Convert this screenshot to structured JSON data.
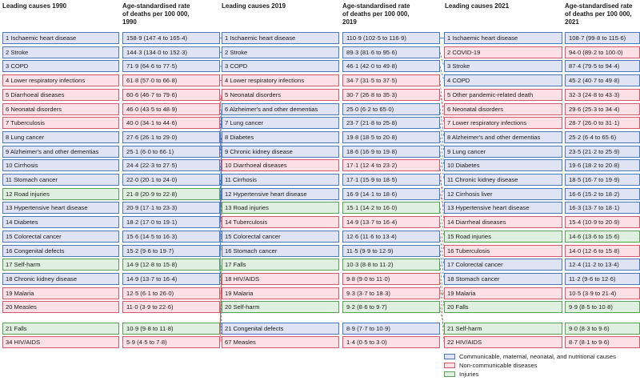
{
  "colors": {
    "communicable": "#4a78b8",
    "noncommunicable": "#d2596b",
    "injuries": "#5a9e5a",
    "communicable_fill": "#e0e3f4",
    "noncommunicable_fill": "#fbe0e6",
    "injuries_fill": "#e0f0e0"
  },
  "headers": {
    "c1990_title": "Leading causes 1990",
    "r1990_l1": "Age-standardised rate",
    "r1990_l2": "of deaths per 100 000,",
    "r1990_l3": "1990",
    "c2019_title": "Leading causes 2019",
    "r2019_l1": "Age-standardised rate",
    "r2019_l2": "of deaths per 100 000,",
    "r2019_l3": "2019",
    "c2021_title": "Leading causes 2021",
    "r2021_l1": "Age-standardised rate",
    "r2021_l2": "of deaths per 100 000,",
    "r2021_l3": "2021"
  },
  "y1990": [
    {
      "label": "1 Ischaemic heart disease",
      "rate": "158·9 (147·4 to 165·4)",
      "cat": "cmn"
    },
    {
      "label": "2 Stroke",
      "rate": "144·3 (134·0 to 152·3)",
      "cat": "cmn"
    },
    {
      "label": "3 COPD",
      "rate": "71·9 (64·6 to 77·5)",
      "cat": "cmn"
    },
    {
      "label": "4 Lower respiratory infections",
      "rate": "61·8 (57·0 to 66·8)",
      "cat": "ncd"
    },
    {
      "label": "5 Diarrhoeal diseases",
      "rate": "60·6 (46·7 to 79·6)",
      "cat": "ncd"
    },
    {
      "label": "6 Neonatal disorders",
      "rate": "46·0 (43·5 to 48·9)",
      "cat": "ncd"
    },
    {
      "label": "7 Tuberculosis",
      "rate": "40·0 (34·1 to 44·6)",
      "cat": "ncd"
    },
    {
      "label": "8 Lung cancer",
      "rate": "27·6 (26·1 to 29·0)",
      "cat": "cmn"
    },
    {
      "label": "9 Alzheimer's and other dementias",
      "rate": "25·1 (6·0 to 66·1)",
      "cat": "cmn"
    },
    {
      "label": "10 Cirrhosis",
      "rate": "24·4 (22·3 to 27·5)",
      "cat": "cmn"
    },
    {
      "label": "11 Stomach cancer",
      "rate": "22·0 (20·1 to 24·0)",
      "cat": "cmn"
    },
    {
      "label": "12 Road injuries",
      "rate": "21·8 (20·9 to 22·8)",
      "cat": "inj"
    },
    {
      "label": "13 Hypertensive heart disease",
      "rate": "20·9 (17·1 to 23·3)",
      "cat": "cmn"
    },
    {
      "label": "14 Diabetes",
      "rate": "18·2 (17·0 to 19·1)",
      "cat": "cmn"
    },
    {
      "label": "15 Colorectal cancer",
      "rate": "15·6 (14·5 to 16·3)",
      "cat": "cmn"
    },
    {
      "label": "16 Congenital defects",
      "rate": "15·2 (9·6 to 19·7)",
      "cat": "cmn"
    },
    {
      "label": "17 Self-harm",
      "rate": "14·9 (12·8 to 15·8)",
      "cat": "inj"
    },
    {
      "label": "18 Chronic kidney disease",
      "rate": "14·9 (13·7 to 16·4)",
      "cat": "cmn"
    },
    {
      "label": "19 Malaria",
      "rate": "12·5 (6·1 to 26·0)",
      "cat": "ncd"
    },
    {
      "label": "20 Measles",
      "rate": "11·0 (3·9 to 22·6)",
      "cat": "ncd"
    }
  ],
  "y1990_extra": [
    {
      "label": "21 Falls",
      "rate": "10·9 (9·8 to 11·8)",
      "cat": "inj"
    },
    {
      "label": "34 HIV/AIDS",
      "rate": "5·9 (4·5 to 7·8)",
      "cat": "ncd"
    }
  ],
  "y2019": [
    {
      "label": "1 Ischaemic heart disease",
      "rate": "110·9 (102·5 to 116·9)",
      "cat": "cmn"
    },
    {
      "label": "2 Stroke",
      "rate": "89·3 (81·6 to 95·6)",
      "cat": "cmn"
    },
    {
      "label": "3 COPD",
      "rate": "46·1 (42·0 to 49·8)",
      "cat": "cmn"
    },
    {
      "label": "4 Lower respiratory infections",
      "rate": "34·7 (31·5 to 37·5)",
      "cat": "ncd"
    },
    {
      "label": "5 Neonatal disorders",
      "rate": "30·7 (26·8 to 35·3)",
      "cat": "ncd"
    },
    {
      "label": "6 Alzheimer's and other dementias",
      "rate": "25·0 (6·2 to 65·0)",
      "cat": "cmn"
    },
    {
      "label": "7 Lung cancer",
      "rate": "23·7 (21·8 to 25·8)",
      "cat": "cmn"
    },
    {
      "label": "8 Diabetes",
      "rate": "19·8 (18·5 to 20·8)",
      "cat": "cmn"
    },
    {
      "label": "9 Chronic kidney disease",
      "rate": "18·6 (16·9 to 19·8)",
      "cat": "cmn"
    },
    {
      "label": "10 Diarrhoeal  diseases",
      "rate": "17·1 (12·4 to 23·2)",
      "cat": "ncd"
    },
    {
      "label": "11 Cirrhosis",
      "rate": "17·1 (15·9 to 18·5)",
      "cat": "cmn"
    },
    {
      "label": "12 Hypertensive heart disease",
      "rate": "16·9 (14·1 to 18·6)",
      "cat": "cmn"
    },
    {
      "label": "13 Road injuries",
      "rate": "15·1 (14·2 to 16·0)",
      "cat": "inj"
    },
    {
      "label": "14 Tuberculosis",
      "rate": "14·9 (13·7 to 16·4)",
      "cat": "ncd"
    },
    {
      "label": "15 Colorectal cancer",
      "rate": "12·6 (11·6 to 13·4)",
      "cat": "cmn"
    },
    {
      "label": "16 Stomach cancer",
      "rate": "11·5 (9·9 to 12·9)",
      "cat": "cmn"
    },
    {
      "label": "17 Falls",
      "rate": "10·3 (8·8 to 11·2)",
      "cat": "inj"
    },
    {
      "label": "18 HIV/AIDS",
      "rate": "9·8 (9·0 to 11·0)",
      "cat": "ncd"
    },
    {
      "label": "19 Malaria",
      "rate": "9·3 (3·7 to 18·3)",
      "cat": "ncd"
    },
    {
      "label": "20 Self-harm",
      "rate": "9·2 (8·6 to 9·7)",
      "cat": "inj"
    }
  ],
  "y2019_extra": [
    {
      "label": "21 Congenital defects",
      "rate": "8·9 (7·7 to 10·9)",
      "cat": "cmn"
    },
    {
      "label": "67 Measles",
      "rate": "1·4 (0·5 to 3·0)",
      "cat": "ncd"
    }
  ],
  "y2021": [
    {
      "label": "1 Ischaemic heart disease",
      "rate": "108·7 (99·8 to 115·6)",
      "cat": "cmn"
    },
    {
      "label": "2 COVID-19",
      "rate": "94·0 (89·2 to 100·0)",
      "cat": "ncd"
    },
    {
      "label": "3 Stroke",
      "rate": "87·4 (79·5 to 94·4)",
      "cat": "cmn"
    },
    {
      "label": "4 COPD",
      "rate": "45·2 (40·7 to 49·8)",
      "cat": "cmn"
    },
    {
      "label": "5 Other pandemic-related death",
      "rate": "32·3 (24·8 to 43·3)",
      "cat": "ncd"
    },
    {
      "label": "6 Neonatal disorders",
      "rate": "29·6 (25·3 to 34·4)",
      "cat": "ncd"
    },
    {
      "label": "7 Lower respiratory infections",
      "rate": "28·7 (26·0 to 31·1)",
      "cat": "ncd"
    },
    {
      "label": "8 Alzheimer's and other dementias",
      "rate": "25·2 (6·4 to 65·6)",
      "cat": "cmn"
    },
    {
      "label": "9 Lung cancer",
      "rate": "23·5 (21·2 to 25·9)",
      "cat": "cmn"
    },
    {
      "label": "10 Diabetes",
      "rate": "19·6 (18·2 to 20·8)",
      "cat": "cmn"
    },
    {
      "label": "11 Chronic kidney disease",
      "rate": "18·5 (16·7 to 19·9)",
      "cat": "cmn"
    },
    {
      "label": "12 Cirrhosis liver",
      "rate": "16·6 (15·2 to 18·2)",
      "cat": "cmn"
    },
    {
      "label": "13 Hypertensive heart disease",
      "rate": "16·3 (13·7 to 18·1)",
      "cat": "cmn"
    },
    {
      "label": "14 Diarrheal diseases",
      "rate": "15·4 (10·9 to 20·9)",
      "cat": "ncd"
    },
    {
      "label": "15 Road injuries",
      "rate": "14·6 (13·6 to 15·6)",
      "cat": "inj"
    },
    {
      "label": "16 Tuberculosis",
      "rate": "14·0 (12·6 to 15·8)",
      "cat": "ncd"
    },
    {
      "label": "17 Colorectal cancer",
      "rate": "12·4 (11·2 to 13·4)",
      "cat": "cmn"
    },
    {
      "label": "18 Stomach cancer",
      "rate": "11·2 (9·6 to 12·6)",
      "cat": "cmn"
    },
    {
      "label": "19 Malaria",
      "rate": "10·5 (3·9 to 21·4)",
      "cat": "ncd"
    },
    {
      "label": "20 Falls",
      "rate": "9·9 (8·5 to 10·8)",
      "cat": "inj"
    }
  ],
  "y2021_extra": [
    {
      "label": "21 Self-harm",
      "rate": "9·0 (8·3 to 9·6)",
      "cat": "inj"
    },
    {
      "label": "22 HIV/AIDS",
      "rate": "8·7 (8·1 to 9·6)",
      "cat": "ncd"
    }
  ],
  "legend": {
    "communicable": "Communicable, maternal, neonatal, and nutritional causes",
    "noncommunicable": "Non-communicable diseases",
    "injuries": "Injuries"
  }
}
